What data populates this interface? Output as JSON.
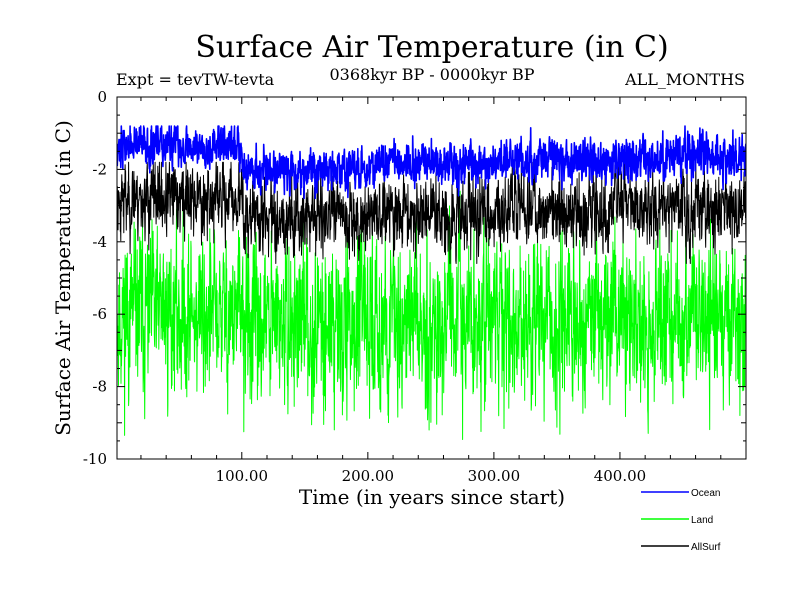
{
  "chart_data": {
    "type": "line",
    "title": "Surface Air Temperature (in C)",
    "subtitle_left": "Expt = tevTW-tevta",
    "subtitle_center": "0368kyr BP - 0000kyr BP",
    "subtitle_right": "ALL_MONTHS",
    "xlabel": "Time (in years since start)",
    "ylabel": "Surface Air Temperature (in C)",
    "xlim": [
      1,
      500
    ],
    "ylim": [
      -10,
      0
    ],
    "x_ticks": [
      100,
      200,
      300,
      400
    ],
    "x_tick_labels": [
      "100.00",
      "200.00",
      "300.00",
      "400.00"
    ],
    "y_ticks": [
      0,
      -2,
      -4,
      -6,
      -8,
      -10
    ],
    "y_tick_labels": [
      "0",
      "-2",
      "-4",
      "-6",
      "-8",
      "-10"
    ],
    "grid": false,
    "legend_position": "bottom-right, below plot",
    "series": [
      {
        "name": "Ocean",
        "color": "#0000ff",
        "description": "annual series, roughly -1.3 C in years 1-100 and about -1.8 C afterward",
        "mean_by_century": [
          -1.35,
          -2.0,
          -1.85,
          -1.75,
          -1.65
        ],
        "range": [
          -2.8,
          -0.8
        ]
      },
      {
        "name": "Land",
        "color": "#00ff00",
        "description": "annual series, highly variable around about -6.2 C",
        "mean_by_century": [
          -6.0,
          -6.3,
          -6.2,
          -6.2,
          -6.2
        ],
        "range": [
          -10.0,
          -2.6
        ]
      },
      {
        "name": "AllSurf",
        "color": "#000000",
        "description": "annual series, around -3 C with spread roughly -4.5 to -1.8",
        "mean_by_century": [
          -2.8,
          -3.3,
          -3.2,
          -3.1,
          -3.0
        ],
        "range": [
          -4.6,
          -1.8
        ]
      }
    ]
  }
}
